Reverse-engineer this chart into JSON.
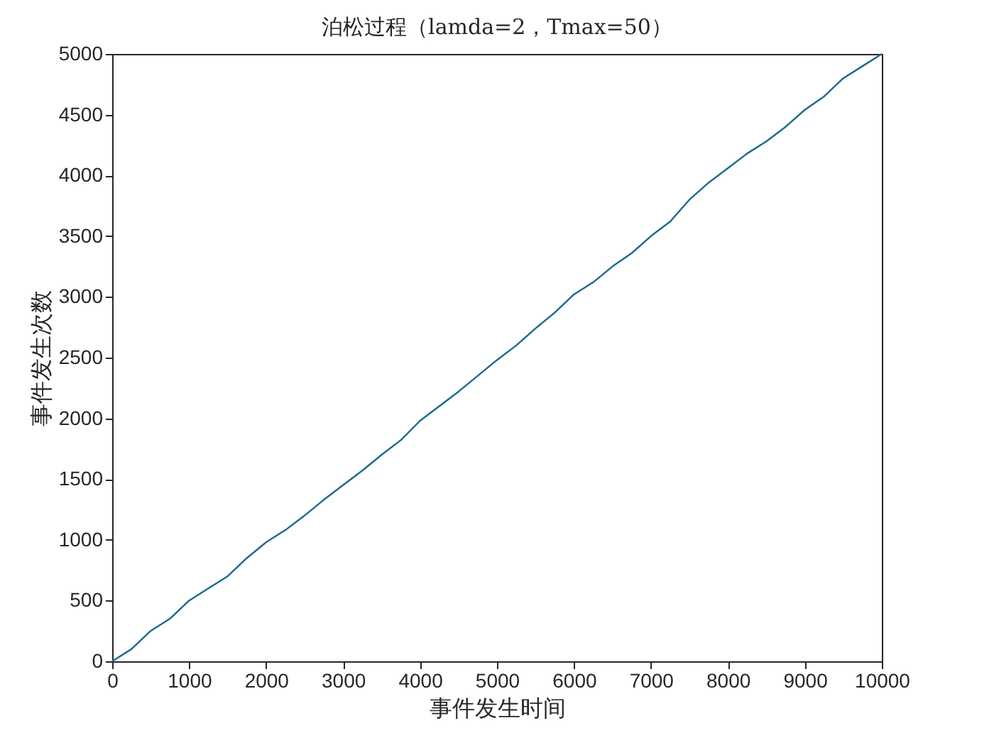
{
  "chart_data": {
    "type": "line",
    "title": "泊松过程（lamda=2，Tmax=50）",
    "xlabel": "事件发生时间",
    "ylabel": "事件发生次数",
    "x": [
      0,
      250,
      500,
      750,
      1000,
      1250,
      1500,
      1750,
      2000,
      2250,
      2500,
      2750,
      3000,
      3250,
      3500,
      3750,
      4000,
      4250,
      4500,
      4750,
      5000,
      5250,
      5500,
      5750,
      6000,
      6250,
      6500,
      6750,
      7000,
      7250,
      7500,
      7750,
      8000,
      8250,
      8500,
      8750,
      9000,
      9250,
      9500,
      9750,
      10000
    ],
    "series": [
      {
        "color": "#1a6a8c",
        "values": [
          0,
          100,
          250,
          350,
          500,
          600,
          700,
          850,
          980,
          1080,
          1200,
          1330,
          1450,
          1570,
          1700,
          1820,
          1980,
          2100,
          2220,
          2350,
          2480,
          2600,
          2740,
          2870,
          3020,
          3120,
          3250,
          3360,
          3500,
          3620,
          3800,
          3940,
          4060,
          4180,
          4280,
          4400,
          4540,
          4650,
          4800,
          4900,
          5000
        ]
      }
    ],
    "xlim": [
      0,
      10000
    ],
    "xticks": [
      0,
      1000,
      2000,
      3000,
      4000,
      5000,
      6000,
      7000,
      8000,
      9000,
      10000
    ],
    "ylim": [
      0,
      5000
    ],
    "yticks": [
      0,
      500,
      1000,
      1500,
      2000,
      2500,
      3000,
      3500,
      4000,
      4500,
      5000
    ],
    "grid": false,
    "marker": "none",
    "line_style": "solid"
  }
}
